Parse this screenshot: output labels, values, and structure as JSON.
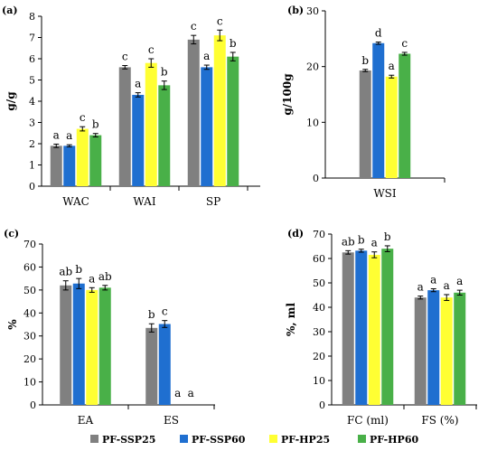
{
  "legend": [
    "PF-SSP25",
    "PF-SSP60",
    "PF-HP25",
    "PF-HP60"
  ],
  "colors": [
    "#808080",
    "#1f6fd0",
    "#ffff33",
    "#49b048"
  ],
  "chart_data": [
    {
      "panel": "(a)",
      "type": "bar",
      "ylabel": "g/g",
      "ylim": [
        0,
        8
      ],
      "yticks": [
        0,
        1,
        2,
        3,
        4,
        5,
        6,
        7,
        8
      ],
      "categories": [
        "WAC",
        "WAI",
        "SP"
      ],
      "series": [
        {
          "name": "PF-SSP25",
          "values": [
            1.9,
            5.6,
            6.9
          ],
          "errors": [
            0.08,
            0.08,
            0.2
          ],
          "letters": [
            "a",
            "c",
            "c"
          ]
        },
        {
          "name": "PF-SSP60",
          "values": [
            1.9,
            4.3,
            5.6
          ],
          "errors": [
            0.05,
            0.1,
            0.1
          ],
          "letters": [
            "a",
            "a",
            "a"
          ]
        },
        {
          "name": "PF-HP25",
          "values": [
            2.7,
            5.8,
            7.1
          ],
          "errors": [
            0.1,
            0.2,
            0.25
          ],
          "letters": [
            "c",
            "c",
            "c"
          ]
        },
        {
          "name": "PF-HP60",
          "values": [
            2.4,
            4.75,
            6.1
          ],
          "errors": [
            0.08,
            0.2,
            0.2
          ],
          "letters": [
            "b",
            "b",
            "b"
          ]
        }
      ]
    },
    {
      "panel": "(b)",
      "type": "bar",
      "ylabel": "g/100g",
      "ylim": [
        0,
        30
      ],
      "yticks": [
        0,
        10,
        20,
        30
      ],
      "categories": [
        "WSI"
      ],
      "series": [
        {
          "name": "PF-SSP25",
          "values": [
            19.3
          ],
          "errors": [
            0.2
          ],
          "letters": [
            "b"
          ]
        },
        {
          "name": "PF-SSP60",
          "values": [
            24.2
          ],
          "errors": [
            0.2
          ],
          "letters": [
            "d"
          ]
        },
        {
          "name": "PF-HP25",
          "values": [
            18.2
          ],
          "errors": [
            0.25
          ],
          "letters": [
            "a"
          ]
        },
        {
          "name": "PF-HP60",
          "values": [
            22.3
          ],
          "errors": [
            0.25
          ],
          "letters": [
            "c"
          ]
        }
      ]
    },
    {
      "panel": "(c)",
      "type": "bar",
      "ylabel": "%",
      "ylim": [
        0,
        70
      ],
      "yticks": [
        0,
        10,
        20,
        30,
        40,
        50,
        60,
        70
      ],
      "categories": [
        "EA",
        "ES"
      ],
      "series": [
        {
          "name": "PF-SSP25",
          "values": [
            52,
            33.5
          ],
          "errors": [
            2,
            1.8
          ],
          "letters": [
            "ab",
            "b"
          ]
        },
        {
          "name": "PF-SSP60",
          "values": [
            52.8,
            35.2
          ],
          "errors": [
            2.2,
            1.5
          ],
          "letters": [
            "b",
            "c"
          ]
        },
        {
          "name": "PF-HP25",
          "values": [
            50,
            0
          ],
          "errors": [
            1,
            0
          ],
          "letters": [
            "a",
            "a"
          ]
        },
        {
          "name": "PF-HP60",
          "values": [
            51,
            0
          ],
          "errors": [
            1,
            0
          ],
          "letters": [
            "ab",
            "a"
          ]
        }
      ]
    },
    {
      "panel": "(d)",
      "type": "bar",
      "ylabel": "%, ml",
      "ylim": [
        0,
        70
      ],
      "yticks": [
        0,
        10,
        20,
        30,
        40,
        50,
        60,
        70
      ],
      "categories": [
        "FC (ml)",
        "FS (%)"
      ],
      "series": [
        {
          "name": "PF-SSP25",
          "values": [
            62.5,
            44
          ],
          "errors": [
            0.7,
            0.6
          ],
          "letters": [
            "ab",
            "a"
          ]
        },
        {
          "name": "PF-SSP60",
          "values": [
            63.2,
            47
          ],
          "errors": [
            0.6,
            0.6
          ],
          "letters": [
            "b",
            "a"
          ]
        },
        {
          "name": "PF-HP25",
          "values": [
            61.5,
            44
          ],
          "errors": [
            1.2,
            1.2
          ],
          "letters": [
            "a",
            "a"
          ]
        },
        {
          "name": "PF-HP60",
          "values": [
            64,
            46
          ],
          "errors": [
            1.2,
            1.0
          ],
          "letters": [
            "b",
            "a"
          ]
        }
      ]
    }
  ]
}
